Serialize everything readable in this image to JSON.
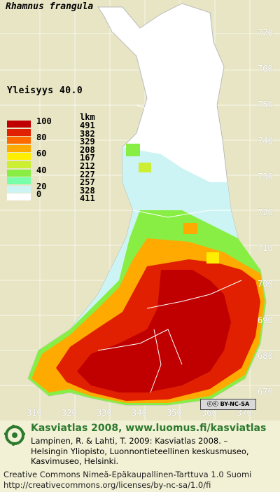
{
  "map": {
    "species": "Rhamnus frangula",
    "frequency_label": "Yleisyys  40.0",
    "legend": {
      "count_header": "lkm",
      "classes": [
        {
          "value": "100",
          "color": "#c00000",
          "count": "491"
        },
        {
          "value": "",
          "color": "#e02000",
          "count": "382"
        },
        {
          "value": "80",
          "color": "#ff6a00",
          "count": "329"
        },
        {
          "value": "",
          "color": "#ffaa00",
          "count": "208"
        },
        {
          "value": "60",
          "color": "#ffee00",
          "count": "167"
        },
        {
          "value": "",
          "color": "#ccee33",
          "count": "212"
        },
        {
          "value": "40",
          "color": "#88ee44",
          "count": "227"
        },
        {
          "value": "",
          "color": "#77ffaa",
          "count": "257"
        },
        {
          "value": "20",
          "color": "#ccf4f4",
          "count": "328"
        },
        {
          "value": "0",
          "color": "#ffffff",
          "count": "411"
        }
      ]
    },
    "y_ticks": [
      "770",
      "760",
      "750",
      "740",
      "730",
      "720",
      "710",
      "700",
      "690",
      "680",
      "670"
    ],
    "x_ticks": [
      "310",
      "320",
      "330",
      "340",
      "350",
      "360",
      "370"
    ],
    "license_badge": "BY-NC-SA"
  },
  "footer": {
    "site_title": "Kasviatlas 2008, www.luomus.fi/kasviatlas",
    "citation": "Lampinen, R. & Lahti, T. 2009: Kasviatlas 2008. –\nHelsingin Yliopisto, Luonnontieteellinen keskusmuseo,\nKasvimuseo, Helsinki.",
    "license": "Creative Commons Nimeä-Epäkaupallinen-Tarttuva 1.0 Suomi\nhttp://creativecommons.org/licenses/by-nc-sa/1.0/fi"
  }
}
